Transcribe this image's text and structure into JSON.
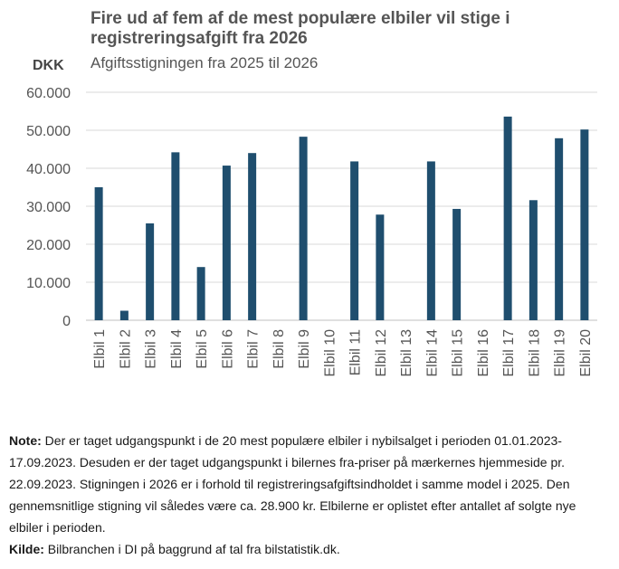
{
  "header": {
    "title": "Fire ud af fem af de mest populære elbiler vil stige i registreringsafgift fra 2026",
    "subtitle": "Afgiftsstigningen fra 2025 til 2026",
    "unit": "DKK"
  },
  "chart_data": {
    "type": "bar",
    "title": "Fire ud af fem af de mest populære elbiler vil stige i registreringsafgift fra 2026",
    "subtitle": "Afgiftsstigningen fra 2025 til 2026",
    "ylabel": "DKK",
    "ylim": [
      0,
      60000
    ],
    "yticks": [
      0,
      10000,
      20000,
      30000,
      40000,
      50000,
      60000
    ],
    "ytick_labels": [
      "0",
      "10.000",
      "20.000",
      "30.000",
      "40.000",
      "50.000",
      "60.000"
    ],
    "grid": true,
    "categories": [
      "Elbil 1",
      "Elbil 2",
      "Elbil 3",
      "Elbil 4",
      "Elbil 5",
      "Elbil 6",
      "Elbil 7",
      "Elbil 8",
      "Elbil 9",
      "Elbil 10",
      "Elbil 11",
      "Elbil 12",
      "Elbil 13",
      "Elbil 14",
      "Elbil 15",
      "Elbil 16",
      "Elbil 17",
      "Elbil 18",
      "Elbil 19",
      "Elbil 20"
    ],
    "values": [
      35000,
      2500,
      25500,
      44200,
      14000,
      40700,
      44000,
      0,
      48300,
      0,
      41800,
      27800,
      0,
      41800,
      29300,
      0,
      53600,
      31600,
      47900,
      50200
    ],
    "bar_color": "#1f4e6e"
  },
  "notes": {
    "note_label": "Note:",
    "note_text": " Der er taget udgangspunkt i de 20 mest populære elbiler i nybilsalget i perioden 01.01.2023-17.09.2023. Desuden er der taget udgangspunkt i bilernes fra-priser på mærkernes hjemmeside pr. 22.09.2023. Stigningen i 2026 er i forhold til registreringsafgiftsindholdet i samme model i 2025. Den gennemsnitlige stigning vil således være ca. 28.900 kr. Elbilerne er oplistet efter antallet af solgte nye elbiler i perioden.",
    "source_label": "Kilde:",
    "source_text": " Bilbranchen i DI på baggrund af tal fra bilstatistik.dk."
  }
}
